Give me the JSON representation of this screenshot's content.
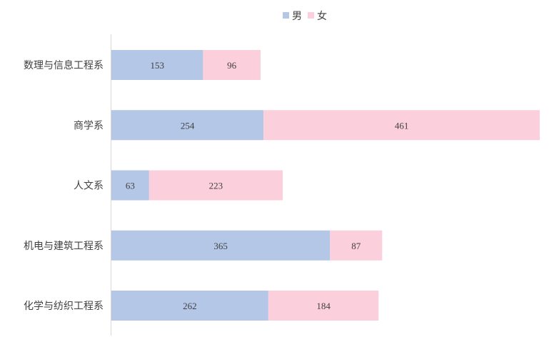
{
  "chart_data": {
    "type": "bar",
    "orientation": "horizontal",
    "stacked": true,
    "title": "",
    "xlabel": "",
    "ylabel": "",
    "categories": [
      "数理与信息工程系",
      "商学系",
      "人文系",
      "机电与建筑工程系",
      "化学与纺织工程系"
    ],
    "series": [
      {
        "name": "男",
        "color": "#b4c7e7",
        "values": [
          153,
          254,
          63,
          365,
          262
        ]
      },
      {
        "name": "女",
        "color": "#fccfdd",
        "values": [
          96,
          461,
          223,
          87,
          184
        ]
      }
    ],
    "xlim": [
      0,
      715
    ],
    "grid": false,
    "legend_position": "top-center",
    "data_labels": true
  }
}
